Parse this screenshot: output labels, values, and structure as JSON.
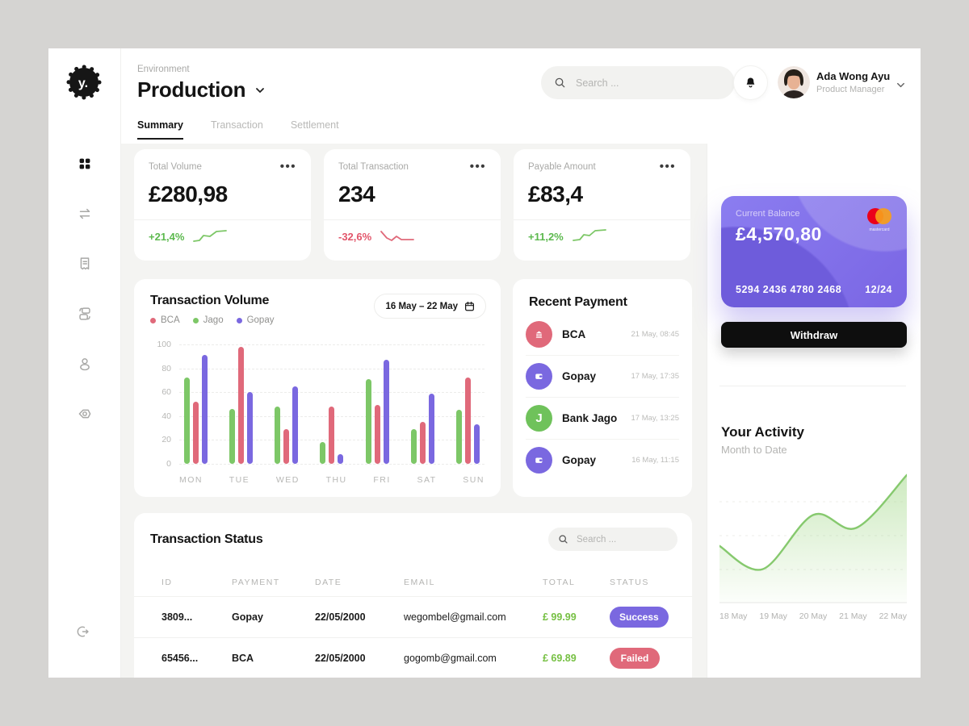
{
  "app": {
    "logo_text": "y.",
    "environment_label": "Environment",
    "environment_value": "Production"
  },
  "header": {
    "search_placeholder": "Search ...",
    "user": {
      "name": "Ada Wong Ayu",
      "role": "Product Manager"
    }
  },
  "tabs": [
    {
      "label": "Summary",
      "active": true
    },
    {
      "label": "Transaction",
      "active": false
    },
    {
      "label": "Settlement",
      "active": false
    }
  ],
  "sidebar_icons": [
    "dashboard-grid",
    "transfer",
    "receipt",
    "card-swap",
    "user",
    "settings",
    "logout"
  ],
  "stats": [
    {
      "label": "Total Volume",
      "value": "£280,98",
      "delta": "+21,4%",
      "trend": "up",
      "spark": [
        [
          2,
          17
        ],
        [
          9,
          16
        ],
        [
          14,
          10
        ],
        [
          22,
          11
        ],
        [
          30,
          5
        ],
        [
          42,
          4
        ]
      ]
    },
    {
      "label": "Total Transaction",
      "value": "234",
      "delta": "-32,6%",
      "trend": "down",
      "spark": [
        [
          2,
          5
        ],
        [
          9,
          13
        ],
        [
          15,
          16
        ],
        [
          21,
          11
        ],
        [
          27,
          15
        ],
        [
          42,
          15
        ]
      ]
    },
    {
      "label": "Payable Amount",
      "value": "£83,4",
      "delta": "+11,2%",
      "trend": "up",
      "spark": [
        [
          2,
          16
        ],
        [
          10,
          15
        ],
        [
          15,
          9
        ],
        [
          22,
          10
        ],
        [
          29,
          4
        ],
        [
          42,
          3
        ]
      ]
    }
  ],
  "volume_chart": {
    "type": "bar",
    "title": "Transaction Volume",
    "date_range": "16 May – 22 May",
    "legend": [
      {
        "label": "BCA",
        "color": "#e0697a"
      },
      {
        "label": "Jago",
        "color": "#7dc767"
      },
      {
        "label": "Gopay",
        "color": "#7a68e0"
      }
    ],
    "y_ticks": [
      100,
      80,
      60,
      40,
      20,
      0
    ],
    "categories": [
      "MON",
      "TUE",
      "WED",
      "THU",
      "FRI",
      "SAT",
      "SUN"
    ],
    "series": [
      {
        "name": "Jago",
        "color": "#7dc767",
        "values": [
          72,
          46,
          48,
          18,
          71,
          29,
          45
        ]
      },
      {
        "name": "BCA",
        "color": "#e0697a",
        "values": [
          52,
          98,
          29,
          48,
          49,
          35,
          72
        ]
      },
      {
        "name": "Gopay",
        "color": "#7a68e0",
        "values": [
          91,
          60,
          65,
          8,
          87,
          59,
          33
        ]
      }
    ]
  },
  "recent_payments": {
    "title": "Recent Payment",
    "items": [
      {
        "name": "BCA",
        "time": "21 May, 08:45",
        "icon": "bank-icon",
        "color": "#e0697a"
      },
      {
        "name": "Gopay",
        "time": "17 May, 17:35",
        "icon": "wallet-icon",
        "color": "#7a68e0"
      },
      {
        "name": "Bank Jago",
        "time": "17 May, 13:25",
        "icon": "letter-j-icon",
        "color": "#6fc25b"
      },
      {
        "name": "Gopay",
        "time": "16 May, 11:15",
        "icon": "wallet-icon",
        "color": "#7a68e0"
      }
    ]
  },
  "transaction_status": {
    "title": "Transaction Status",
    "search_placeholder": "Search ...",
    "columns": [
      "ID",
      "PAYMENT",
      "DATE",
      "EMAIL",
      "TOTAL",
      "STATUS"
    ],
    "rows": [
      {
        "id": "3809...",
        "payment": "Gopay",
        "date": "22/05/2000",
        "email": "wegombel@gmail.com",
        "total": "£ 99.99",
        "status": "Success",
        "status_color": "#7a68e0"
      },
      {
        "id": "65456...",
        "payment": "BCA",
        "date": "22/05/2000",
        "email": "gogomb@gmail.com",
        "total": "£ 69.89",
        "status": "Failed",
        "status_color": "#e0697a"
      }
    ]
  },
  "right_panel": {
    "card": {
      "label": "Current Balance",
      "balance": "£4,570,80",
      "number": "5294 2436 4780 2468",
      "expiry": "12/24",
      "brand": "mastercard"
    },
    "withdraw_label": "Withdraw",
    "activity": {
      "type": "area",
      "title": "Your Activity",
      "subtitle": "Month to Date",
      "x_labels": [
        "18 May",
        "19 May",
        "20 May",
        "21 May",
        "22 May"
      ],
      "points": [
        42,
        24,
        66,
        56,
        97
      ],
      "line_color": "#86c96e"
    }
  },
  "colors": {
    "accent_purple": "#7a68e0",
    "green": "#7dc767",
    "red": "#e0697a",
    "positive_text": "#5cb94e",
    "negative_text": "#e2556a",
    "card_purple": "#8173e8",
    "total_green": "#76c043"
  }
}
